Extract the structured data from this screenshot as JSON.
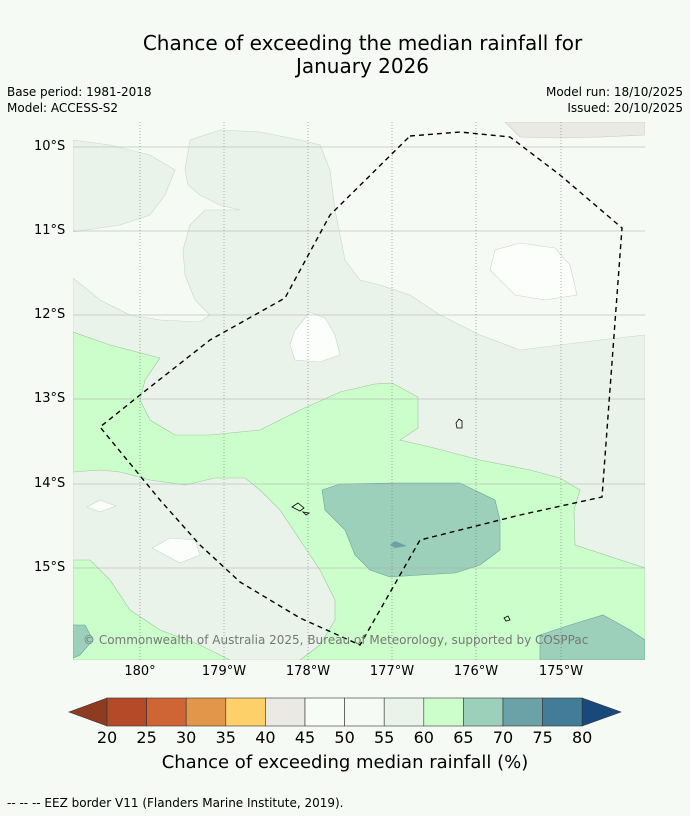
{
  "title": {
    "line1": "Chance of exceeding the median rainfall for",
    "line2": "January 2026"
  },
  "meta": {
    "base_period": "Base period: 1981-2018",
    "model": "Model: ACCESS-S2",
    "model_run": "Model run: 18/10/2025",
    "issued": "Issued: 20/10/2025"
  },
  "axes": {
    "lat_labels": [
      "10°S",
      "11°S",
      "12°S",
      "13°S",
      "14°S",
      "15°S"
    ],
    "lon_labels": [
      "180°",
      "179°W",
      "178°W",
      "177°W",
      "176°W",
      "175°W"
    ]
  },
  "colorbar": {
    "ticks": [
      "20",
      "25",
      "30",
      "35",
      "40",
      "45",
      "50",
      "55",
      "60",
      "65",
      "70",
      "75",
      "80"
    ],
    "label": "Chance of exceeding median rainfall (%)",
    "colors": {
      "below_20": "#8f3b22",
      "c20_25": "#b54a28",
      "c25_30": "#cf6435",
      "c30_35": "#e2964a",
      "c35_40": "#fed06a",
      "c40_45": "#ebe9e4",
      "c45_50": "#f7fcf7",
      "c50_55": "#f5faf5",
      "c55_60": "#eaf3ea",
      "c60_65": "#ccfecb",
      "c65_70": "#9cd0bb",
      "c70_75": "#6ba2a8",
      "c75_80": "#427c99",
      "above_80": "#17497b"
    }
  },
  "copyright": "© Commonwealth of Australia 2025, Bureau of Meteorology, supported by COSPPac",
  "footer": "-- -- -- EEZ border V11 (Flanders Marine Institute, 2019)."
}
